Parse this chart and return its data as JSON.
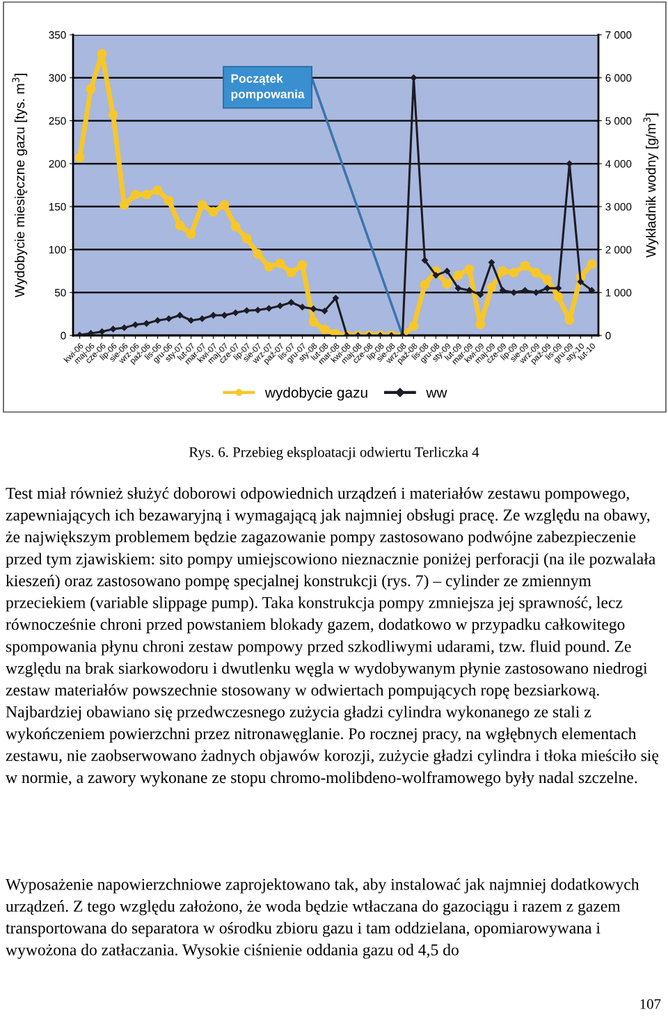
{
  "chart_data": {
    "type": "line",
    "categories": [
      "kwi-06",
      "maj-06",
      "cze-06",
      "lip-06",
      "sie-06",
      "wrz-06",
      "paź-06",
      "lis-06",
      "gru-06",
      "sty-07",
      "lut-07",
      "mar-07",
      "kwi-07",
      "maj-07",
      "cze-07",
      "lip-07",
      "sie-07",
      "wrz-07",
      "paź-07",
      "lis-07",
      "gru-07",
      "sty-08",
      "lut-08",
      "mar-08",
      "kwi-08",
      "maj-08",
      "cze-08",
      "lip-08",
      "sie-08",
      "wrz-08",
      "paź-08",
      "lis-08",
      "gru-08",
      "sty-09",
      "lut-09",
      "mar-09",
      "kwi-09",
      "maj-09",
      "cze-09",
      "lip-09",
      "sie-09",
      "wrz-09",
      "paź-09",
      "lis-09",
      "gru-09",
      "sty-10",
      "lut-10"
    ],
    "series": [
      {
        "name": "wydobycie gazu",
        "color": "#f7c72a",
        "marker": "circle",
        "values": [
          207,
          287,
          328,
          257,
          152,
          164,
          164,
          169,
          157,
          128,
          118,
          152,
          144,
          152,
          127,
          113,
          95,
          80,
          84,
          73,
          82,
          16,
          7,
          2,
          0,
          0,
          0,
          0,
          0,
          0,
          11,
          59,
          75,
          60,
          70,
          77,
          13,
          56,
          75,
          73,
          81,
          73,
          65,
          45,
          18,
          68,
          83
        ]
      },
      {
        "name": "ww",
        "color": "#1c1c24",
        "marker": "diamond",
        "axis": "y2",
        "values": [
          10,
          50,
          90,
          150,
          180,
          250,
          280,
          350,
          390,
          470,
          350,
          390,
          470,
          470,
          530,
          580,
          590,
          630,
          690,
          770,
          660,
          620,
          570,
          870,
          0,
          0,
          0,
          0,
          0,
          0,
          6000,
          1750,
          1400,
          1500,
          1100,
          1050,
          950,
          1700,
          1050,
          1000,
          1050,
          1000,
          1100,
          1100,
          4000,
          1250,
          1050
        ]
      }
    ],
    "ylabel": "Wydobycie miesięczne gazu [tys. m$^{3}$]",
    "y2label": "Wykładnik wodny [g/m$^{3}$]",
    "ylim": [
      0,
      350
    ],
    "yticks": [
      0,
      50,
      100,
      150,
      200,
      250,
      300,
      350
    ],
    "y2lim": [
      0,
      7000
    ],
    "y2ticks": [
      0,
      {
        "value": 1000,
        "label": "1 000"
      },
      {
        "value": 2000,
        "label": "2 000"
      },
      {
        "value": 3000,
        "label": "3 000"
      },
      {
        "value": 4000,
        "label": "4 000"
      },
      {
        "value": 5000,
        "label": "5 000"
      },
      {
        "value": 6000,
        "label": "6 000"
      },
      {
        "value": 7000,
        "label": "7 000"
      }
    ],
    "grid": "y",
    "legend": "bottom",
    "line_style": "solid",
    "annotations": [
      {
        "text": "Początek\npompowania",
        "x": "wrz-08",
        "y": 0
      },
      "Rys. 6. Przebieg eksploatacji odwiertu Terliczka 4",
      "Test miał również służyć doborowi odpowiednich urządzeń i materiałów zestawu pompowego, zapewniających ich bezawaryjną i wymagającą jak najmniej obsługi pracę. Ze względu na obawy, że największym problemem będzie zagazowanie pompy zastosowano podwójne zabezpieczenie przed tym zjawiskiem: sito pompy umiejscowiono nieznacznie poniżej perforacji (na ile pozwalała kieszeń) oraz zastosowano pompę specjalnej konstrukcji (rys. 7) – cylinder ze zmiennym przeciekiem (variable slippage pump). Taka konstrukcja pompy zmniejsza jej sprawność, lecz równocześnie chroni przed powstaniem blokady gazem, dodatkowo w przypadku całkowitego spompowania płynu chroni zestaw pompowy przed szkodliwymi udarami, tzw. fluid pound. Ze względu na brak siarkowodoru i dwutlenku węgla w wydobywanym płynie zastosowano niedrogi zestaw materiałów powszechnie stosowany w odwiertach pompujących ropę bezsiarkową. Najbardziej obawiano się przedwczesnego zużycia gładzi cylindra wykonanego ze stali z wykończeniem powierzchni przez nitronawęglanie. Po rocznej pracy, na wgłębnych elementach zestawu, nie zaobserwowano żadnych objawów korozji, zużycie gładzi cylindra i tłoka mieściło się w normie, a zawory wykonane ze stopu chromo-molibdeno-wolframowego były nadal szczelne.",
      "Wyposażenie napowierzchniowe zaprojektowano tak, aby instalować jak najmniej dodatkowych urządzeń. Z tego względu założono, że woda będzie wtłaczana do gazociągu i razem z gazem transportowana do separatora w ośrodku zbioru gazu i tam oddzielana, opomiarowywana i wywożona do zatłaczania. Wysokie ciśnienie oddania gazu od 4,5 do",
      "107"
    ]
  }
}
